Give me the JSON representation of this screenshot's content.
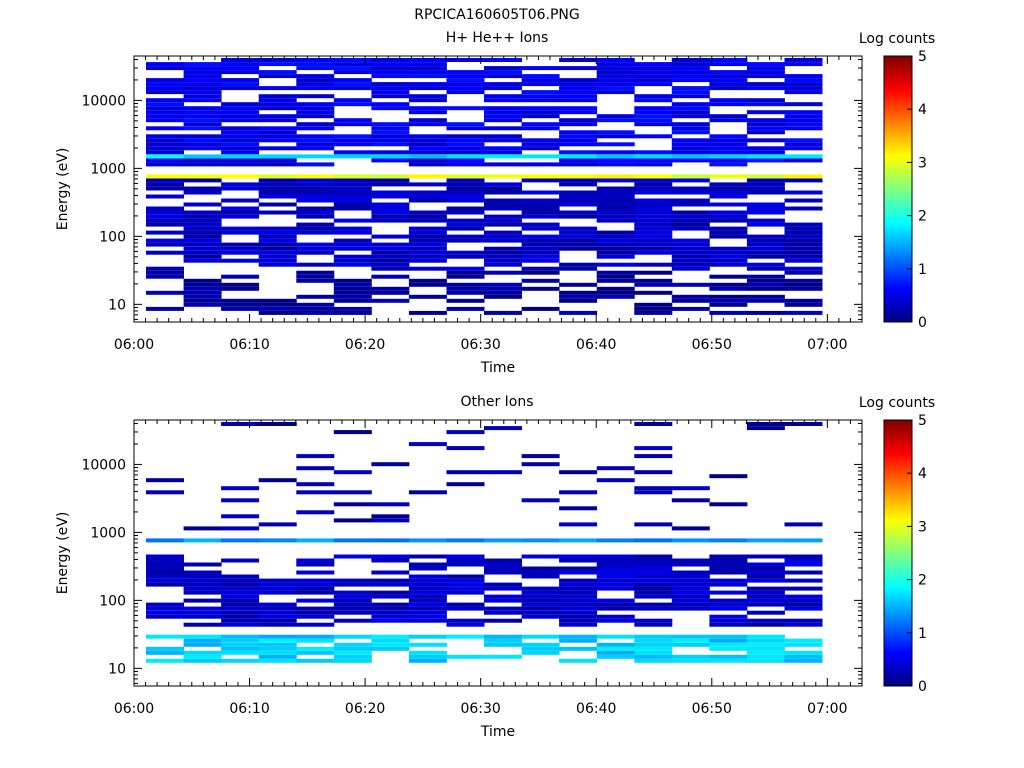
{
  "page_title": "RPCICA160605T06.PNG",
  "chart_data": [
    {
      "type": "heatmap",
      "title": "H+ He++ Ions",
      "xlabel": "Time",
      "ylabel": "Energy (eV)",
      "colorbar_label": "Log counts",
      "colorbar_ticks": [
        "0",
        "1",
        "2",
        "3",
        "4",
        "5"
      ],
      "color_range": [
        0,
        5
      ],
      "y_scale": "log",
      "y_range": [
        5.5,
        45000
      ],
      "y_ticks": [
        10,
        100,
        1000,
        10000
      ],
      "y_tick_labels": [
        "10",
        "100",
        "1000",
        "10000"
      ],
      "x_range": [
        "06:00",
        "07:03"
      ],
      "x_tick_labels": [
        "06:00",
        "06:10",
        "06:20",
        "06:30",
        "06:40",
        "06:50",
        "07:00"
      ],
      "time_bins": [
        "06:02:40",
        "06:05:55",
        "06:09:10",
        "06:12:25",
        "06:15:40",
        "06:18:55",
        "06:22:10",
        "06:25:25",
        "06:28:40",
        "06:31:55",
        "06:35:10",
        "06:38:25",
        "06:41:40",
        "06:44:55",
        "06:48:10",
        "06:51:25",
        "06:54:40",
        "06:57:55"
      ],
      "energy_range_covered": [
        7,
        42000
      ],
      "features": [
        {
          "energy": 780,
          "log_counts": 3.0,
          "note": "peak band, yellow-orange"
        },
        {
          "energy": 1550,
          "log_counts": 1.7,
          "note": "secondary band, cyan-green"
        },
        {
          "energy_range": [
            1000,
            42000
          ],
          "log_counts": 0.5
        },
        {
          "energy_range": [
            30,
            700
          ],
          "log_counts": 0.3
        },
        {
          "energy_range": [
            7,
            30
          ],
          "log_counts": 0.1,
          "note": "sparse"
        }
      ]
    },
    {
      "type": "heatmap",
      "title": "Other Ions",
      "xlabel": "Time",
      "ylabel": "Energy (eV)",
      "colorbar_label": "Log counts",
      "colorbar_ticks": [
        "0",
        "1",
        "2",
        "3",
        "4",
        "5"
      ],
      "color_range": [
        0,
        5
      ],
      "y_scale": "log",
      "y_range": [
        5.5,
        45000
      ],
      "y_ticks": [
        10,
        100,
        1000,
        10000
      ],
      "y_tick_labels": [
        "10",
        "100",
        "1000",
        "10000"
      ],
      "x_range": [
        "06:00",
        "07:03"
      ],
      "x_tick_labels": [
        "06:00",
        "06:10",
        "06:20",
        "06:30",
        "06:40",
        "06:50",
        "07:00"
      ],
      "time_bins": [
        "06:02:40",
        "06:05:55",
        "06:09:10",
        "06:12:25",
        "06:15:40",
        "06:18:55",
        "06:22:10",
        "06:25:25",
        "06:28:40",
        "06:31:55",
        "06:35:10",
        "06:38:25",
        "06:41:40",
        "06:44:55",
        "06:48:10",
        "06:51:25",
        "06:54:40",
        "06:57:55"
      ],
      "energy_range_covered": [
        7,
        42000
      ],
      "features": [
        {
          "energy": 780,
          "log_counts": 1.3,
          "note": "continuous band, cyan"
        },
        {
          "energy_range": [
            12,
            30
          ],
          "log_counts": 1.6,
          "note": "low-energy band, cyan-green"
        },
        {
          "energy_range": [
            40,
            500
          ],
          "log_counts": 0.3
        },
        {
          "energy_range": [
            1000,
            42000
          ],
          "log_counts": 0.15,
          "note": "very sparse"
        }
      ]
    }
  ]
}
